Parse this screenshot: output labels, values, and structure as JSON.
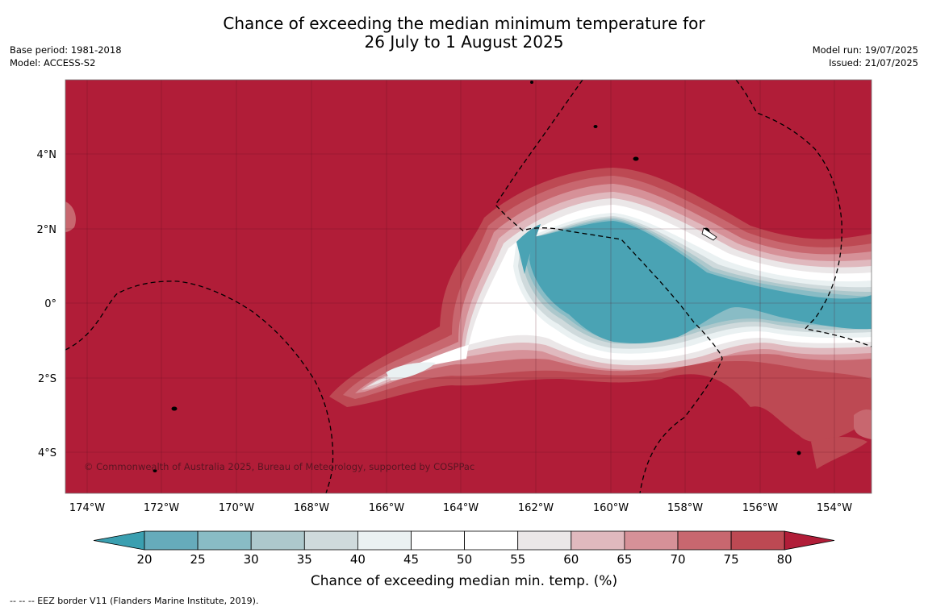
{
  "title": {
    "line1": "Chance of exceeding the median minimum temperature for",
    "line2": "26 July to 1 August 2025"
  },
  "meta_left": {
    "base_period": "Base period: 1981-2018",
    "model": "Model: ACCESS-S2"
  },
  "meta_right": {
    "model_run": "Model run: 19/07/2025",
    "issued": "Issued: 21/07/2025"
  },
  "map": {
    "lat_labels": [
      "4°N",
      "2°N",
      "0°",
      "2°S",
      "4°S"
    ],
    "lon_labels": [
      "174°W",
      "172°W",
      "170°W",
      "168°W",
      "166°W",
      "164°W",
      "162°W",
      "160°W",
      "158°W",
      "156°W",
      "154°W"
    ],
    "copyright": "© Commonwealth of Australia 2025, Bureau of Meteorology, supported by COSPPac",
    "background_color": "#b11d38"
  },
  "colorbar": {
    "labels": [
      "20",
      "25",
      "30",
      "35",
      "40",
      "45",
      "50",
      "55",
      "60",
      "65",
      "70",
      "75",
      "80"
    ],
    "colors": [
      "#3a9fb0",
      "#66abbb",
      "#89bcc5",
      "#adc8cc",
      "#cfdadc",
      "#eaf1f2",
      "#ffffff",
      "#ffffff",
      "#ebe7e8",
      "#e0b9be",
      "#d69198",
      "#c8676f",
      "#bd4953",
      "#b11d38"
    ],
    "title": "Chance of exceeding median min. temp. (%)"
  },
  "footer": "--  --  -- EEZ border V11 (Flanders Marine Institute, 2019)."
}
